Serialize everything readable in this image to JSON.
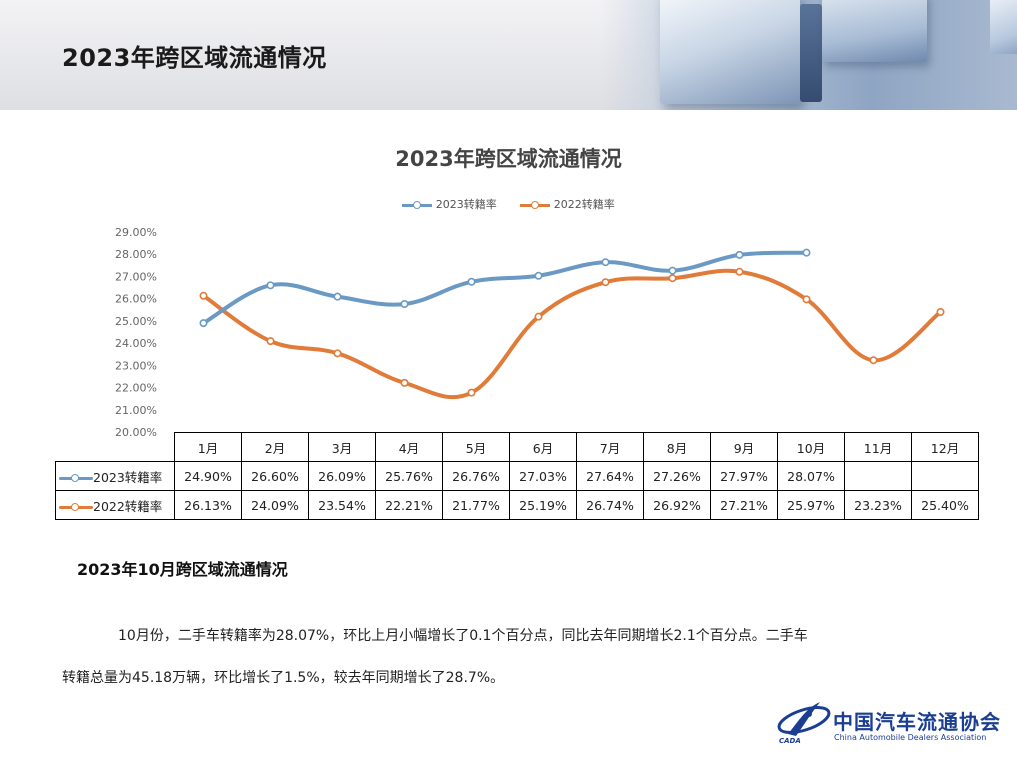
{
  "header": {
    "title": "2023年跨区域流通情况"
  },
  "chart_data": {
    "type": "line",
    "title": "2023年跨区域流通情况",
    "categories": [
      "1月",
      "2月",
      "3月",
      "4月",
      "5月",
      "6月",
      "7月",
      "8月",
      "9月",
      "10月",
      "11月",
      "12月"
    ],
    "series": [
      {
        "name": "2023转籍率",
        "color": "#6a99c4",
        "values": [
          24.9,
          26.6,
          26.09,
          25.76,
          26.76,
          27.03,
          27.64,
          27.26,
          27.97,
          28.07,
          null,
          null
        ],
        "labels": [
          "24.90%",
          "26.60%",
          "26.09%",
          "25.76%",
          "26.76%",
          "27.03%",
          "27.64%",
          "27.26%",
          "27.97%",
          "28.07%",
          "",
          ""
        ]
      },
      {
        "name": "2022转籍率",
        "color": "#e07b3a",
        "values": [
          26.13,
          24.09,
          23.54,
          22.21,
          21.77,
          25.19,
          26.74,
          26.92,
          27.21,
          25.97,
          23.23,
          25.4
        ],
        "labels": [
          "26.13%",
          "24.09%",
          "23.54%",
          "22.21%",
          "21.77%",
          "25.19%",
          "26.74%",
          "26.92%",
          "27.21%",
          "25.97%",
          "23.23%",
          "25.40%"
        ]
      }
    ],
    "ylim": [
      20,
      29
    ],
    "yticks": [
      "20.00%",
      "21.00%",
      "22.00%",
      "23.00%",
      "24.00%",
      "25.00%",
      "26.00%",
      "27.00%",
      "28.00%",
      "29.00%"
    ],
    "legend_position": "top-center",
    "grid": false,
    "smooth": true,
    "data_table": true
  },
  "section": {
    "title": "2023年10月跨区域流通情况",
    "line1": "10月份，二手车转籍率为28.07%，环比上月小幅增长了0.1个百分点，同比去年同期增长2.1个百分点。二手车",
    "line2": "转籍总量为45.18万辆，环比增长了1.5%，较去年同期增长了28.7%。"
  },
  "logo": {
    "name_cn": "中国汽车流通协会",
    "name_en": "China Automobile Dealers Association",
    "abbr": "CADA",
    "color": "#1b3e93"
  }
}
